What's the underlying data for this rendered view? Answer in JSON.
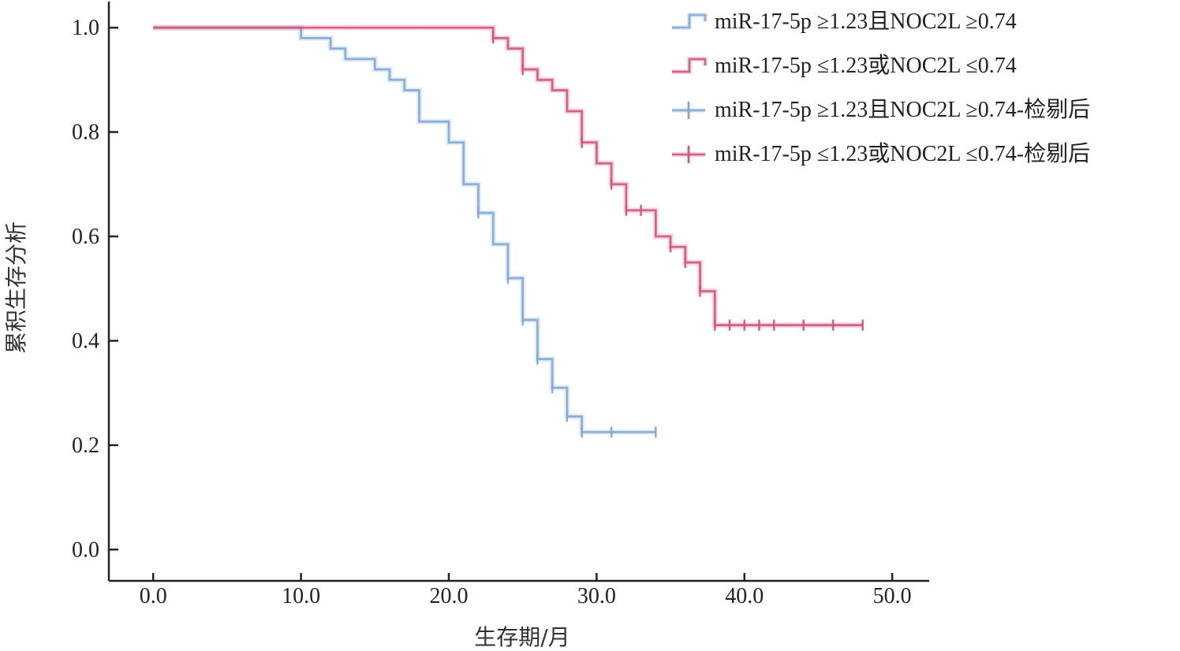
{
  "chart_data": {
    "type": "line",
    "title": "",
    "xlabel": "生存期/月",
    "ylabel": "累积生存分析",
    "xlim": [
      -3,
      52.5
    ],
    "ylim": [
      -0.06,
      1.05
    ],
    "xticks": [
      0,
      10,
      20,
      30,
      40,
      50
    ],
    "xtick_labels": [
      "0.0",
      "10.0",
      "20.0",
      "30.0",
      "40.0",
      "50.0"
    ],
    "yticks": [
      0,
      0.2,
      0.4,
      0.6,
      0.8,
      1.0
    ],
    "ytick_labels": [
      "0.0",
      "0.2",
      "0.4",
      "0.6",
      "0.8",
      "1.0"
    ],
    "grid": false,
    "legend_position": "top-right",
    "legend": [
      {
        "label": "miR-17-5p ≥1.23且NOC2L ≥0.74",
        "series": 0,
        "kind": "line"
      },
      {
        "label": "miR-17-5p ≤1.23或NOC2L ≤0.74",
        "series": 1,
        "kind": "line"
      },
      {
        "label": "miR-17-5p ≥1.23且NOC2L ≥0.74-检剔后",
        "series": 0,
        "kind": "censor"
      },
      {
        "label": "miR-17-5p ≤1.23或NOC2L ≤0.74-检剔后",
        "series": 1,
        "kind": "censor"
      }
    ],
    "series": [
      {
        "color": "#7ea9d9",
        "steps": [
          [
            0,
            1.0
          ],
          [
            10,
            0.98
          ],
          [
            12,
            0.96
          ],
          [
            13,
            0.94
          ],
          [
            15,
            0.92
          ],
          [
            16,
            0.9
          ],
          [
            17,
            0.88
          ],
          [
            18,
            0.82
          ],
          [
            20,
            0.78
          ],
          [
            21,
            0.7
          ],
          [
            22,
            0.645
          ],
          [
            23,
            0.585
          ],
          [
            24,
            0.52
          ],
          [
            25,
            0.44
          ],
          [
            26,
            0.365
          ],
          [
            27,
            0.31
          ],
          [
            28,
            0.255
          ],
          [
            29,
            0.225
          ]
        ],
        "end_x": 34,
        "censored": [
          [
            22,
            0.645
          ],
          [
            24,
            0.52
          ],
          [
            25,
            0.44
          ],
          [
            26,
            0.365
          ],
          [
            27,
            0.31
          ],
          [
            28,
            0.255
          ],
          [
            29,
            0.225
          ],
          [
            31,
            0.225
          ],
          [
            34,
            0.225
          ]
        ]
      },
      {
        "color": "#d9527a",
        "steps": [
          [
            0,
            1.0
          ],
          [
            23,
            0.98
          ],
          [
            24,
            0.96
          ],
          [
            25,
            0.92
          ],
          [
            26,
            0.9
          ],
          [
            27,
            0.88
          ],
          [
            28,
            0.84
          ],
          [
            29,
            0.78
          ],
          [
            30,
            0.74
          ],
          [
            31,
            0.7
          ],
          [
            32,
            0.65
          ],
          [
            34,
            0.6
          ],
          [
            35,
            0.58
          ],
          [
            36,
            0.55
          ],
          [
            37,
            0.495
          ],
          [
            38,
            0.43
          ]
        ],
        "end_x": 48,
        "censored": [
          [
            23,
            0.98
          ],
          [
            25,
            0.92
          ],
          [
            29,
            0.78
          ],
          [
            31,
            0.7
          ],
          [
            32,
            0.65
          ],
          [
            33,
            0.65
          ],
          [
            35,
            0.58
          ],
          [
            36,
            0.55
          ],
          [
            37,
            0.495
          ],
          [
            38,
            0.43
          ],
          [
            39,
            0.43
          ],
          [
            40,
            0.43
          ],
          [
            41,
            0.43
          ],
          [
            42,
            0.43
          ],
          [
            44,
            0.43
          ],
          [
            46,
            0.43
          ],
          [
            48,
            0.43
          ]
        ]
      }
    ]
  }
}
